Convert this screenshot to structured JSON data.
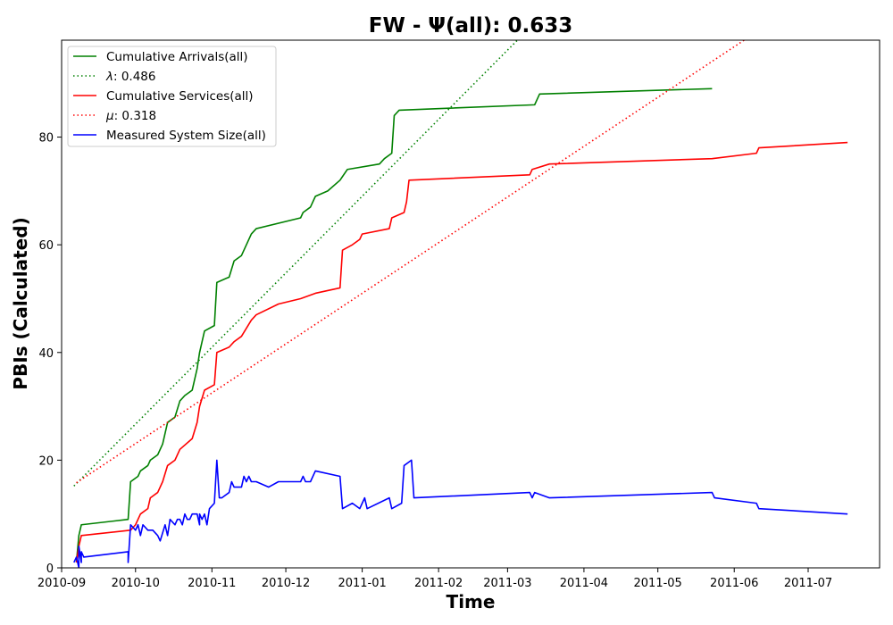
{
  "chart_data": {
    "type": "line",
    "title": "FW -  Ψ(all): 0.633",
    "xlabel": "Time",
    "ylabel": "PBIs (Calculated)",
    "xlim": [
      "2010-09-01",
      "2011-07-30"
    ],
    "ylim": [
      0,
      98
    ],
    "x_ticks": [
      "2010-09",
      "2010-10",
      "2010-11",
      "2010-12",
      "2011-01",
      "2011-02",
      "2011-03",
      "2011-04",
      "2011-05",
      "2011-06",
      "2011-07"
    ],
    "y_ticks": [
      0,
      20,
      40,
      60,
      80
    ],
    "grid": false,
    "legend_position": "top-left",
    "series": [
      {
        "name": "Cumulative Arrivals(all)",
        "color": "#008000",
        "style": "solid",
        "points": [
          [
            "2010-09-07",
            1
          ],
          [
            "2010-09-08",
            6
          ],
          [
            "2010-09-09",
            8
          ],
          [
            "2010-09-28",
            9
          ],
          [
            "2010-09-29",
            16
          ],
          [
            "2010-10-02",
            17
          ],
          [
            "2010-10-03",
            18
          ],
          [
            "2010-10-06",
            19
          ],
          [
            "2010-10-07",
            20
          ],
          [
            "2010-10-10",
            21
          ],
          [
            "2010-10-12",
            23
          ],
          [
            "2010-10-14",
            27
          ],
          [
            "2010-10-17",
            28
          ],
          [
            "2010-10-19",
            31
          ],
          [
            "2010-10-21",
            32
          ],
          [
            "2010-10-24",
            33
          ],
          [
            "2010-10-26",
            37
          ],
          [
            "2010-10-27",
            40
          ],
          [
            "2010-10-29",
            44
          ],
          [
            "2010-11-02",
            45
          ],
          [
            "2010-11-03",
            53
          ],
          [
            "2010-11-08",
            54
          ],
          [
            "2010-11-10",
            57
          ],
          [
            "2010-11-13",
            58
          ],
          [
            "2010-11-17",
            62
          ],
          [
            "2010-11-19",
            63
          ],
          [
            "2010-12-07",
            65
          ],
          [
            "2010-12-08",
            66
          ],
          [
            "2010-12-11",
            67
          ],
          [
            "2010-12-13",
            69
          ],
          [
            "2010-12-18",
            70
          ],
          [
            "2010-12-23",
            72
          ],
          [
            "2010-12-26",
            74
          ],
          [
            "2011-01-08",
            75
          ],
          [
            "2011-01-10",
            76
          ],
          [
            "2011-01-13",
            77
          ],
          [
            "2011-01-14",
            84
          ],
          [
            "2011-01-16",
            85
          ],
          [
            "2011-03-12",
            86
          ],
          [
            "2011-03-13",
            87
          ],
          [
            "2011-03-14",
            88
          ],
          [
            "2011-05-23",
            89
          ]
        ]
      },
      {
        "name": "λ: 0.486",
        "label_symbol": "λ",
        "label_rest": ": 0.486",
        "color": "#008000",
        "style": "dotted",
        "points": [
          [
            "2010-09-06",
            15.2
          ],
          [
            "2011-03-05",
            98
          ]
        ]
      },
      {
        "name": "Cumulative Services(all)",
        "color": "#ff0000",
        "style": "solid",
        "points": [
          [
            "2010-09-07",
            1
          ],
          [
            "2010-09-08",
            4
          ],
          [
            "2010-09-09",
            6
          ],
          [
            "2010-09-29",
            7
          ],
          [
            "2010-10-01",
            8
          ],
          [
            "2010-10-03",
            10
          ],
          [
            "2010-10-06",
            11
          ],
          [
            "2010-10-07",
            13
          ],
          [
            "2010-10-10",
            14
          ],
          [
            "2010-10-12",
            16
          ],
          [
            "2010-10-14",
            19
          ],
          [
            "2010-10-17",
            20
          ],
          [
            "2010-10-19",
            22
          ],
          [
            "2010-10-24",
            24
          ],
          [
            "2010-10-26",
            27
          ],
          [
            "2010-10-27",
            30
          ],
          [
            "2010-10-29",
            33
          ],
          [
            "2010-11-02",
            34
          ],
          [
            "2010-11-03",
            40
          ],
          [
            "2010-11-08",
            41
          ],
          [
            "2010-11-10",
            42
          ],
          [
            "2010-11-13",
            43
          ],
          [
            "2010-11-17",
            46
          ],
          [
            "2010-11-19",
            47
          ],
          [
            "2010-11-28",
            49
          ],
          [
            "2010-12-07",
            50
          ],
          [
            "2010-12-13",
            51
          ],
          [
            "2010-12-23",
            52
          ],
          [
            "2010-12-24",
            59
          ],
          [
            "2010-12-28",
            60
          ],
          [
            "2010-12-31",
            61
          ],
          [
            "2011-01-01",
            62
          ],
          [
            "2011-01-12",
            63
          ],
          [
            "2011-01-13",
            65
          ],
          [
            "2011-01-18",
            66
          ],
          [
            "2011-01-19",
            68
          ],
          [
            "2011-01-20",
            72
          ],
          [
            "2011-03-10",
            73
          ],
          [
            "2011-03-11",
            74
          ],
          [
            "2011-03-18",
            75
          ],
          [
            "2011-05-23",
            76
          ],
          [
            "2011-06-10",
            77
          ],
          [
            "2011-06-11",
            78
          ],
          [
            "2011-07-17",
            79
          ]
        ]
      },
      {
        "name": "μ: 0.318",
        "label_symbol": "μ",
        "label_rest": ": 0.318",
        "color": "#ff0000",
        "style": "dotted",
        "points": [
          [
            "2010-09-07",
            15.8
          ],
          [
            "2011-06-05",
            98
          ]
        ]
      },
      {
        "name": "Measured System Size(all)",
        "color": "#0000ff",
        "style": "solid",
        "points": [
          [
            "2010-09-06",
            1
          ],
          [
            "2010-09-07",
            2
          ],
          [
            "2010-09-08",
            0
          ],
          [
            "2010-09-08",
            4
          ],
          [
            "2010-09-09",
            1
          ],
          [
            "2010-09-09",
            3
          ],
          [
            "2010-09-10",
            2
          ],
          [
            "2010-09-28",
            3
          ],
          [
            "2010-09-28",
            1
          ],
          [
            "2010-09-29",
            8
          ],
          [
            "2010-10-01",
            7
          ],
          [
            "2010-10-02",
            8
          ],
          [
            "2010-10-03",
            6
          ],
          [
            "2010-10-04",
            8
          ],
          [
            "2010-10-06",
            7
          ],
          [
            "2010-10-08",
            7
          ],
          [
            "2010-10-10",
            6
          ],
          [
            "2010-10-11",
            5
          ],
          [
            "2010-10-13",
            8
          ],
          [
            "2010-10-14",
            6
          ],
          [
            "2010-10-15",
            9
          ],
          [
            "2010-10-17",
            8
          ],
          [
            "2010-10-18",
            9
          ],
          [
            "2010-10-19",
            9
          ],
          [
            "2010-10-20",
            8
          ],
          [
            "2010-10-21",
            10
          ],
          [
            "2010-10-22",
            9
          ],
          [
            "2010-10-23",
            9
          ],
          [
            "2010-10-24",
            10
          ],
          [
            "2010-10-26",
            10
          ],
          [
            "2010-10-27",
            8
          ],
          [
            "2010-10-27",
            10
          ],
          [
            "2010-10-28",
            9
          ],
          [
            "2010-10-29",
            10
          ],
          [
            "2010-10-30",
            8
          ],
          [
            "2010-10-31",
            11
          ],
          [
            "2010-11-02",
            12
          ],
          [
            "2010-11-03",
            20
          ],
          [
            "2010-11-04",
            13
          ],
          [
            "2010-11-05",
            13
          ],
          [
            "2010-11-08",
            14
          ],
          [
            "2010-11-09",
            16
          ],
          [
            "2010-11-10",
            15
          ],
          [
            "2010-11-13",
            15
          ],
          [
            "2010-11-14",
            17
          ],
          [
            "2010-11-15",
            16
          ],
          [
            "2010-11-16",
            17
          ],
          [
            "2010-11-17",
            16
          ],
          [
            "2010-11-19",
            16
          ],
          [
            "2010-11-24",
            15
          ],
          [
            "2010-11-28",
            16
          ],
          [
            "2010-12-07",
            16
          ],
          [
            "2010-12-08",
            17
          ],
          [
            "2010-12-09",
            16
          ],
          [
            "2010-12-11",
            16
          ],
          [
            "2010-12-13",
            18
          ],
          [
            "2010-12-23",
            17
          ],
          [
            "2010-12-24",
            11
          ],
          [
            "2010-12-28",
            12
          ],
          [
            "2010-12-31",
            11
          ],
          [
            "2011-01-01",
            12
          ],
          [
            "2011-01-02",
            13
          ],
          [
            "2011-01-03",
            11
          ],
          [
            "2011-01-12",
            13
          ],
          [
            "2011-01-13",
            11
          ],
          [
            "2011-01-17",
            12
          ],
          [
            "2011-01-18",
            19
          ],
          [
            "2011-01-21",
            20
          ],
          [
            "2011-01-22",
            13
          ],
          [
            "2011-03-10",
            14
          ],
          [
            "2011-03-11",
            13
          ],
          [
            "2011-03-12",
            14
          ],
          [
            "2011-03-18",
            13
          ],
          [
            "2011-05-23",
            14
          ],
          [
            "2011-05-24",
            13
          ],
          [
            "2011-06-10",
            12
          ],
          [
            "2011-06-11",
            11
          ],
          [
            "2011-07-17",
            10
          ]
        ]
      }
    ]
  }
}
